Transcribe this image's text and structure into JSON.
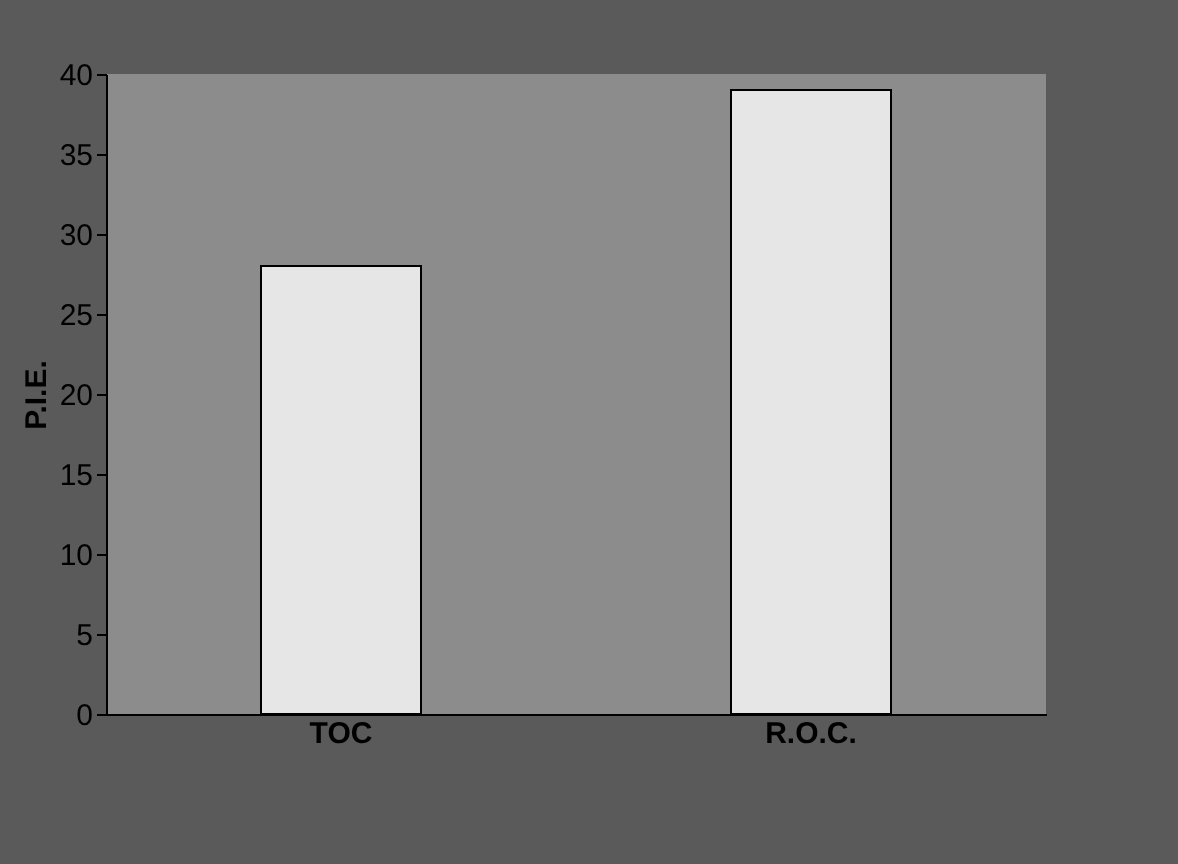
{
  "chart_data": {
    "type": "bar",
    "ylabel": "P.I.E.",
    "categories": [
      "TOC",
      "R.O.C."
    ],
    "values": [
      28,
      39
    ],
    "color": "#e6e6e6",
    "ylim": [
      0,
      40
    ],
    "yticks": [
      0,
      5,
      10,
      15,
      20,
      25,
      30,
      35,
      40
    ],
    "grid": false
  }
}
